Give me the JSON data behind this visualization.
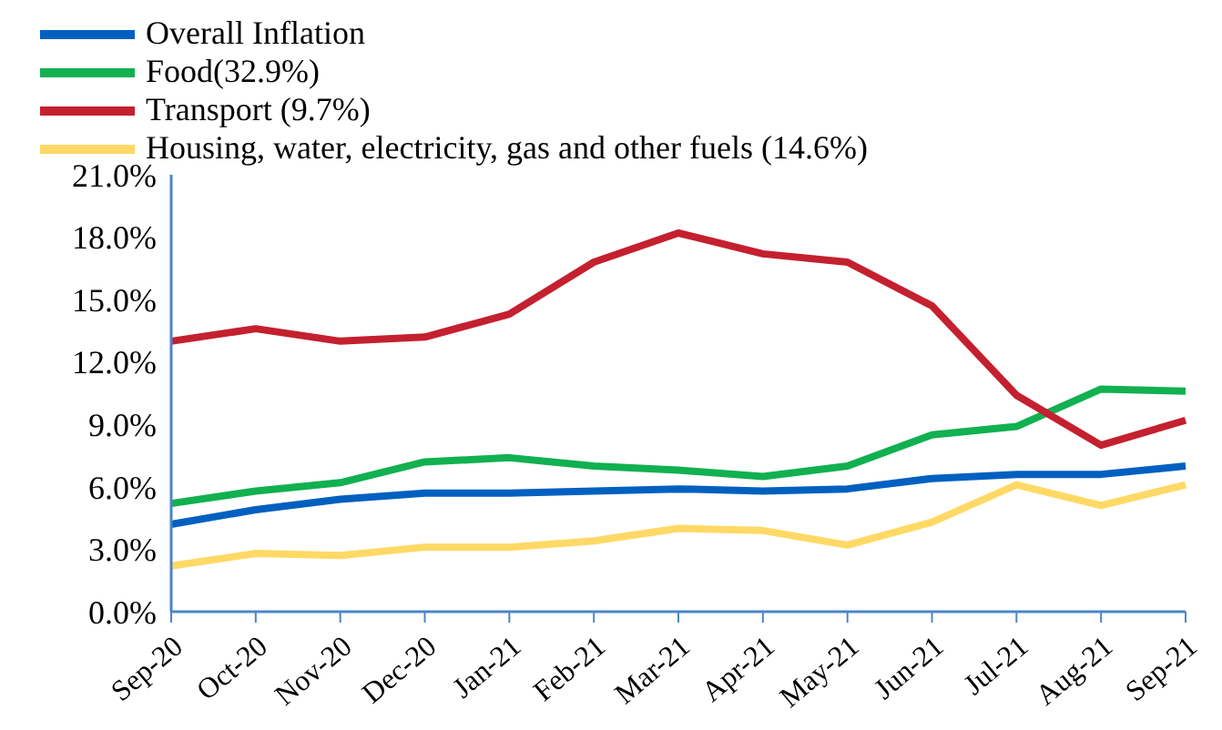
{
  "chart_data": {
    "type": "line",
    "categories": [
      "Sep-20",
      "Oct-20",
      "Nov-20",
      "Dec-20",
      "Jan-21",
      "Feb-21",
      "Mar-21",
      "Apr-21",
      "May-21",
      "Jun-21",
      "Jul-21",
      "Aug-21",
      "Sep-21"
    ],
    "series": [
      {
        "name": "Overall Inflation",
        "color": "#0060c0",
        "values": [
          4.2,
          4.9,
          5.4,
          5.7,
          5.7,
          5.8,
          5.9,
          5.8,
          5.9,
          6.4,
          6.6,
          6.6,
          7.0
        ]
      },
      {
        "name": "Food(32.9%)",
        "color": "#11b050",
        "values": [
          5.2,
          5.8,
          6.2,
          7.2,
          7.4,
          7.0,
          6.8,
          6.5,
          7.0,
          8.5,
          8.9,
          10.7,
          10.6
        ]
      },
      {
        "name": "Transport (9.7%)",
        "color": "#c4202f",
        "values": [
          13.0,
          13.6,
          13.0,
          13.2,
          14.3,
          16.8,
          18.2,
          17.2,
          16.8,
          14.7,
          10.4,
          8.0,
          9.2
        ]
      },
      {
        "name": "Housing, water, electricity, gas and other fuels (14.6%)",
        "color": "#ffd966",
        "values": [
          2.2,
          2.8,
          2.7,
          3.1,
          3.1,
          3.4,
          4.0,
          3.9,
          3.2,
          4.3,
          6.1,
          5.1,
          6.1
        ]
      }
    ],
    "ylim": [
      0,
      21
    ],
    "yticks": [
      {
        "value": 0,
        "label": "0.0%"
      },
      {
        "value": 3,
        "label": "3.0%"
      },
      {
        "value": 6,
        "label": "6.0%"
      },
      {
        "value": 9,
        "label": "9.0%"
      },
      {
        "value": 12,
        "label": "12.0%"
      },
      {
        "value": 15,
        "label": "15.0%"
      },
      {
        "value": 18,
        "label": "18.0%"
      },
      {
        "value": 21,
        "label": "21.0%"
      }
    ],
    "grid": false,
    "legend": "top left",
    "marker": "none",
    "line_style": "solid"
  }
}
